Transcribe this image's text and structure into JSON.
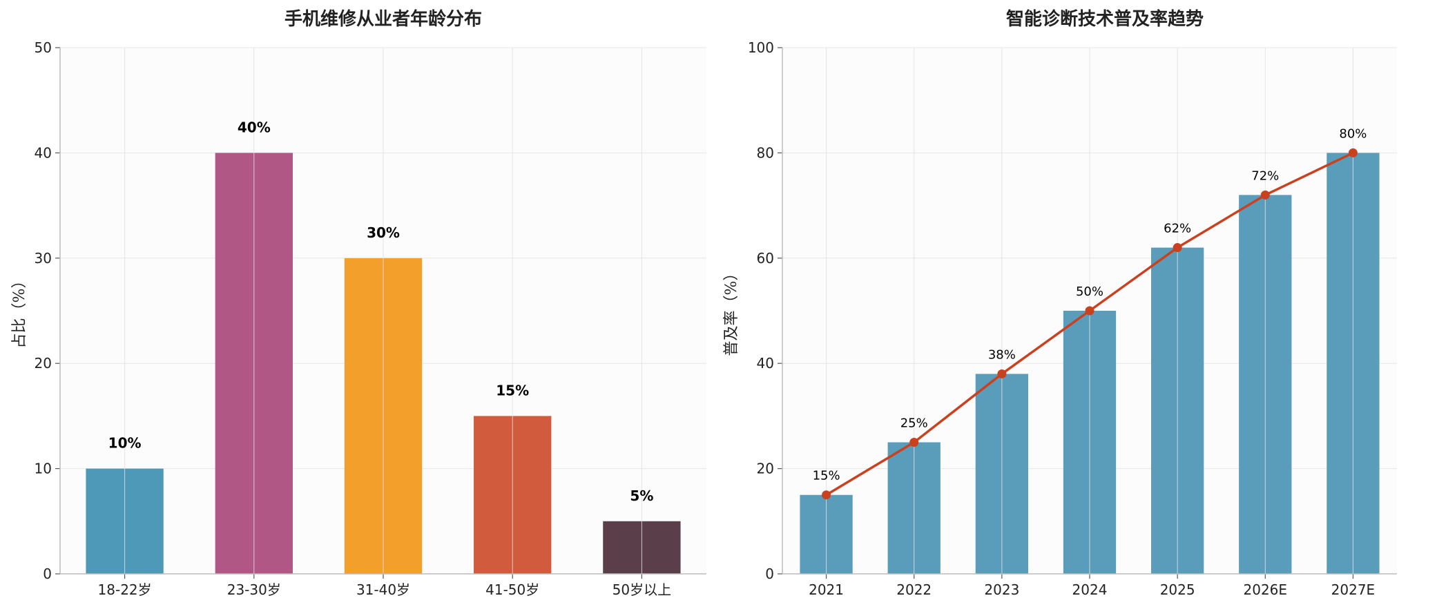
{
  "chart_data": [
    {
      "type": "bar",
      "title": "手机维修从业者年龄分布",
      "xlabel": "",
      "ylabel": "占比（%）",
      "ylim": [
        0,
        50
      ],
      "yticks": [
        "0",
        "10",
        "20",
        "30",
        "40",
        "50"
      ],
      "categories": [
        "18-22岁",
        "23-30岁",
        "31-40岁",
        "41-50岁",
        "50岁以上"
      ],
      "values": [
        10,
        40,
        30,
        15,
        5
      ],
      "value_labels": [
        "10%",
        "40%",
        "30%",
        "15%",
        "5%"
      ],
      "colors": [
        "#4e98b8",
        "#b05786",
        "#f2a02b",
        "#d05c3d",
        "#5a3f4a"
      ],
      "grid": true
    },
    {
      "type": "bar+line",
      "title": "智能诊断技术普及率趋势",
      "xlabel": "",
      "ylabel": "普及率（%）",
      "ylim": [
        0,
        100
      ],
      "yticks": [
        "0",
        "20",
        "40",
        "60",
        "80",
        "100"
      ],
      "categories": [
        "2021",
        "2022",
        "2023",
        "2024",
        "2025",
        "2026E",
        "2027E"
      ],
      "values": [
        15,
        25,
        38,
        50,
        62,
        72,
        80
      ],
      "value_labels": [
        "15%",
        "25%",
        "38%",
        "50%",
        "62%",
        "72%",
        "80%"
      ],
      "bar_color": "#5a9dbb",
      "line_color": "#c9411f",
      "grid": true
    }
  ]
}
